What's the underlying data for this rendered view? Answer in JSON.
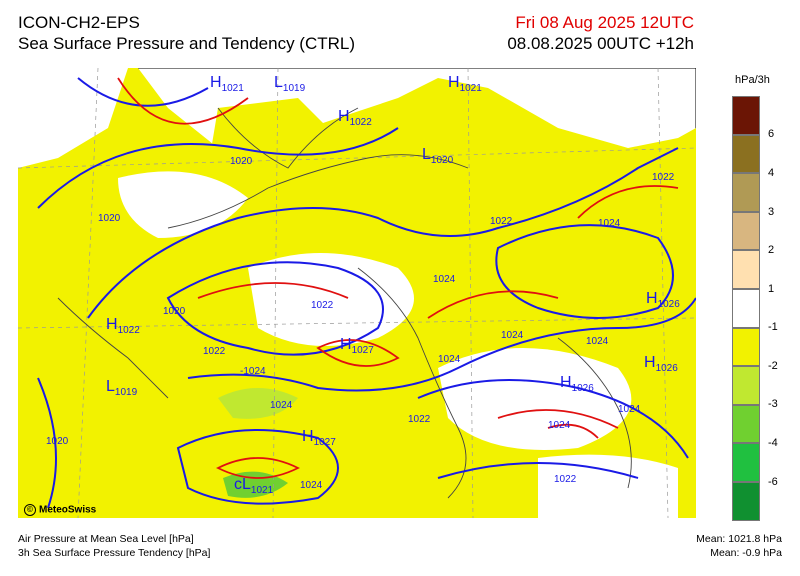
{
  "header": {
    "model": "ICON-CH2-EPS",
    "product": "Sea Surface Pressure and Tendency (CTRL)",
    "valid_time": "Fri 08 Aug 2025 12UTC",
    "run_time": "08.08.2025 00UTC +12h"
  },
  "legend": {
    "unit": "hPa/3h",
    "labels": [
      "6",
      "4",
      "3",
      "2",
      "1",
      "-1",
      "-2",
      "-3",
      "-4",
      "-6"
    ],
    "colors": [
      "#6b1505",
      "#8b7020",
      "#b09a55",
      "#d8b680",
      "#ffe0b0",
      "#ffffff",
      "#f2f200",
      "#c0e830",
      "#70d030",
      "#20c040",
      "#109030"
    ]
  },
  "pressure_systems": [
    {
      "type": "H",
      "value": "1021"
    },
    {
      "type": "L",
      "value": "1019"
    },
    {
      "type": "H",
      "value": "1021"
    },
    {
      "type": "H",
      "value": "1022"
    },
    {
      "type": "L",
      "value": "1020"
    },
    {
      "type": "H",
      "value": "1022"
    },
    {
      "type": "L",
      "value": "1019"
    },
    {
      "type": "H",
      "value": "1027"
    },
    {
      "type": "H",
      "value": "1026"
    },
    {
      "type": "H",
      "value": "1026"
    },
    {
      "type": "H",
      "value": "1026"
    },
    {
      "type": "H",
      "value": "1027"
    },
    {
      "type": "cL",
      "value": "1021"
    }
  ],
  "isobar_labels": [
    "1020",
    "1020",
    "1020",
    "1020",
    "1022",
    "1022",
    "1024",
    "1024",
    "1022",
    "1024",
    "1024",
    "1024",
    "-1024",
    "1024",
    "1022",
    "1024",
    "1022",
    "1024",
    "1024",
    "1022"
  ],
  "credit": "MeteoSwiss",
  "footer": {
    "line1": "Air Pressure at Mean Sea Level [hPa]",
    "line2": "3h Sea Surface Pressure Tendency [hPa]",
    "mean1": "Mean: 1021.8 hPa",
    "mean2": "Mean:   -0.9 hPa"
  }
}
